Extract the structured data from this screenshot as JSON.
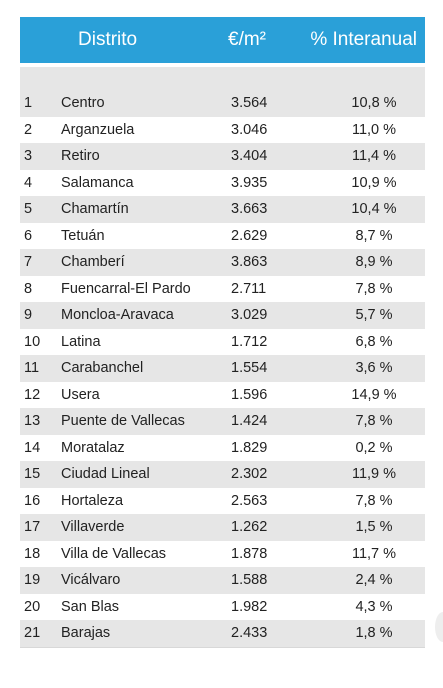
{
  "header": {
    "col_name": "Distrito",
    "col_price": "€/m²",
    "col_change": "% Interanual"
  },
  "rows": [
    {
      "n": "1",
      "name": "Centro",
      "price": "3.564",
      "change": "10,8 %"
    },
    {
      "n": "2",
      "name": "Arganzuela",
      "price": "3.046",
      "change": "11,0 %"
    },
    {
      "n": "3",
      "name": "Retiro",
      "price": "3.404",
      "change": "11,4 %"
    },
    {
      "n": "4",
      "name": "Salamanca",
      "price": "3.935",
      "change": "10,9 %"
    },
    {
      "n": "5",
      "name": "Chamartín",
      "price": "3.663",
      "change": "10,4 %"
    },
    {
      "n": "6",
      "name": "Tetuán",
      "price": "2.629",
      "change": "8,7 %"
    },
    {
      "n": "7",
      "name": "Chamberí",
      "price": "3.863",
      "change": "8,9 %"
    },
    {
      "n": "8",
      "name": "Fuencarral-El Pardo",
      "price": "2.711",
      "change": "7,8 %"
    },
    {
      "n": "9",
      "name": "Moncloa-Aravaca",
      "price": "3.029",
      "change": "5,7 %"
    },
    {
      "n": "10",
      "name": "Latina",
      "price": "1.712",
      "change": "6,8 %"
    },
    {
      "n": "11",
      "name": "Carabanchel",
      "price": "1.554",
      "change": "3,6 %"
    },
    {
      "n": "12",
      "name": "Usera",
      "price": "1.596",
      "change": "14,9 %"
    },
    {
      "n": "13",
      "name": "Puente de Vallecas",
      "price": "1.424",
      "change": "7,8 %"
    },
    {
      "n": "14",
      "name": "Moratalaz",
      "price": "1.829",
      "change": "0,2 %"
    },
    {
      "n": "15",
      "name": "Ciudad Lineal",
      "price": "2.302",
      "change": "11,9 %"
    },
    {
      "n": "16",
      "name": "Hortaleza",
      "price": "2.563",
      "change": "7,8 %"
    },
    {
      "n": "17",
      "name": "Villaverde",
      "price": "1.262",
      "change": "1,5 %"
    },
    {
      "n": "18",
      "name": "Villa de Vallecas",
      "price": "1.878",
      "change": "11,7 %"
    },
    {
      "n": "19",
      "name": "Vicálvaro",
      "price": "1.588",
      "change": "2,4 %"
    },
    {
      "n": "20",
      "name": "San Blas",
      "price": "1.982",
      "change": "4,3 %"
    },
    {
      "n": "21",
      "name": "Barajas",
      "price": "2.433",
      "change": "1,8 %"
    }
  ]
}
